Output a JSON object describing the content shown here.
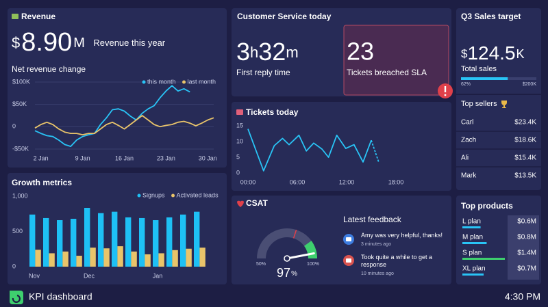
{
  "revenue": {
    "title": "Revenue",
    "big_value": {
      "prefix": "$",
      "number": "8.90",
      "suffix": "M"
    },
    "caption": "Revenue this year"
  },
  "customer_service": {
    "title": "Customer Service today",
    "first_reply": {
      "hours": "3",
      "hours_unit": "h",
      "minutes": "32",
      "minutes_unit": "m",
      "label": "First reply time"
    },
    "sla": {
      "value": 23,
      "label": "Tickets breached SLA"
    }
  },
  "csat_feedback": {
    "title": "Latest feedback",
    "items": [
      {
        "text": "Amy was very helpful, thanks!",
        "time": "3 minutes ago",
        "sentiment": "positive"
      },
      {
        "text": "Took quite a while to get a response",
        "time": "10 minutes ago",
        "sentiment": "negative"
      }
    ]
  },
  "q3_sales": {
    "title": "Q3 Sales target",
    "total": {
      "prefix": "$",
      "number": "124.5",
      "suffix": "K"
    },
    "label": "Total sales",
    "progress": {
      "value": 62,
      "label": "62%"
    },
    "target_label": "$200K",
    "sellers_title": "Top sellers",
    "sellers": [
      [
        "Carl",
        "$23.4K"
      ],
      [
        "Zach",
        "$18.6K"
      ],
      [
        "Ali",
        "$15.4K"
      ],
      [
        "Mark",
        "$13.5K"
      ]
    ]
  },
  "footer": {
    "title": "KPI dashboard",
    "time": "4:30 PM"
  },
  "chart_data": [
    {
      "type": "line",
      "title": "Net revenue change",
      "categories": [
        null,
        "2 Jan",
        null,
        null,
        null,
        null,
        null,
        null,
        "9 Jan",
        null,
        null,
        null,
        null,
        null,
        null,
        "16 Jan",
        null,
        null,
        null,
        null,
        null,
        null,
        "23 Jan",
        null,
        null,
        null,
        null,
        null,
        null,
        "30 Jan",
        null
      ],
      "series": [
        {
          "name": "this month",
          "color": "#29c4f6",
          "values": [
            -9000,
            -15000,
            -20000,
            -22000,
            -30000,
            -40000,
            -44000,
            -30000,
            -22000,
            -18000,
            -15000,
            5000,
            20000,
            38000,
            40000,
            35000,
            24000,
            15000,
            30000,
            40000,
            47000,
            65000,
            80000,
            92000,
            80000,
            85000,
            78000,
            null,
            null,
            null,
            null
          ]
        },
        {
          "name": "last month",
          "color": "#e9c46a",
          "values": [
            -3000,
            5000,
            10000,
            5000,
            -5000,
            -12000,
            -15000,
            -15000,
            -18000,
            -15000,
            -15000,
            -5000,
            5000,
            10000,
            3000,
            -5000,
            5000,
            15000,
            25000,
            15000,
            5000,
            0,
            3000,
            5000,
            10000,
            12000,
            8000,
            2000,
            8000,
            15000,
            20000
          ]
        }
      ],
      "ylim": [
        -60000,
        110000
      ],
      "yticks": [
        {
          "value": 100000,
          "label": "$100K"
        },
        {
          "value": 50000,
          "label": "$50K"
        },
        0,
        {
          "value": -50000,
          "label": "-$50K"
        }
      ],
      "grid": true,
      "legend": "top-right"
    },
    {
      "type": "bar",
      "title": "Growth metrics",
      "categories": [
        "Nov",
        null,
        null,
        null,
        "Dec",
        null,
        null,
        null,
        null,
        "Jan",
        null,
        null,
        null
      ],
      "series": [
        {
          "name": "Signups",
          "color": "#1ec0f5",
          "values": [
            740,
            690,
            660,
            680,
            835,
            760,
            780,
            700,
            690,
            660,
            700,
            740,
            780
          ]
        },
        {
          "name": "Activated leads",
          "color": "#e9c46a",
          "values": [
            240,
            190,
            215,
            155,
            270,
            260,
            290,
            215,
            175,
            190,
            235,
            255,
            270
          ]
        }
      ],
      "ylim": [
        0,
        1000
      ],
      "yticks": [
        {
          "value": 1000,
          "label": "1,000"
        },
        500,
        0
      ],
      "grid": false,
      "legend": "top-right"
    },
    {
      "type": "line",
      "title": "Tickets today",
      "x": [
        0,
        1.9,
        3.2,
        4.2,
        5,
        6.2,
        7.1,
        8,
        9,
        9.8,
        10.8,
        11.9,
        12.9,
        14,
        15,
        15.9
      ],
      "values": [
        14,
        0.7,
        8.7,
        11,
        9,
        12,
        7,
        9.5,
        7.6,
        5,
        12,
        7.8,
        9,
        3.5,
        10.4,
        3.5
      ],
      "color": "#29c4f6",
      "dashed_last_segment": true,
      "xlim": [
        0,
        24
      ],
      "xticks": [
        {
          "value": 0,
          "label": "00:00"
        },
        {
          "value": 6,
          "label": "06:00"
        },
        {
          "value": 12,
          "label": "12:00"
        },
        {
          "value": 18,
          "label": "18:00"
        }
      ],
      "ylim": [
        0,
        15
      ],
      "yticks": [
        15,
        10,
        5,
        0
      ],
      "grid": false
    },
    {
      "type": "gauge",
      "title": "CSAT",
      "value": 97,
      "unit": "%",
      "target": 80,
      "good_from": 90,
      "ylim": [
        50,
        100
      ],
      "yticks": [
        {
          "value": 50,
          "label": "50%"
        },
        {
          "value": 100,
          "label": "100%"
        }
      ]
    },
    {
      "type": "hbar",
      "title": "Top products",
      "categories": [
        "L plan",
        "M plan",
        "S plan",
        "XL plan"
      ],
      "values": [
        0.6,
        0.8,
        1.4,
        0.7
      ],
      "value_labels": [
        "$0.6M",
        "$0.8M",
        "$1.4M",
        "$0.7M"
      ],
      "colors": [
        "#29c4f6",
        "#29c4f6",
        "#3ecf6e",
        "#29c4f6"
      ]
    }
  ]
}
